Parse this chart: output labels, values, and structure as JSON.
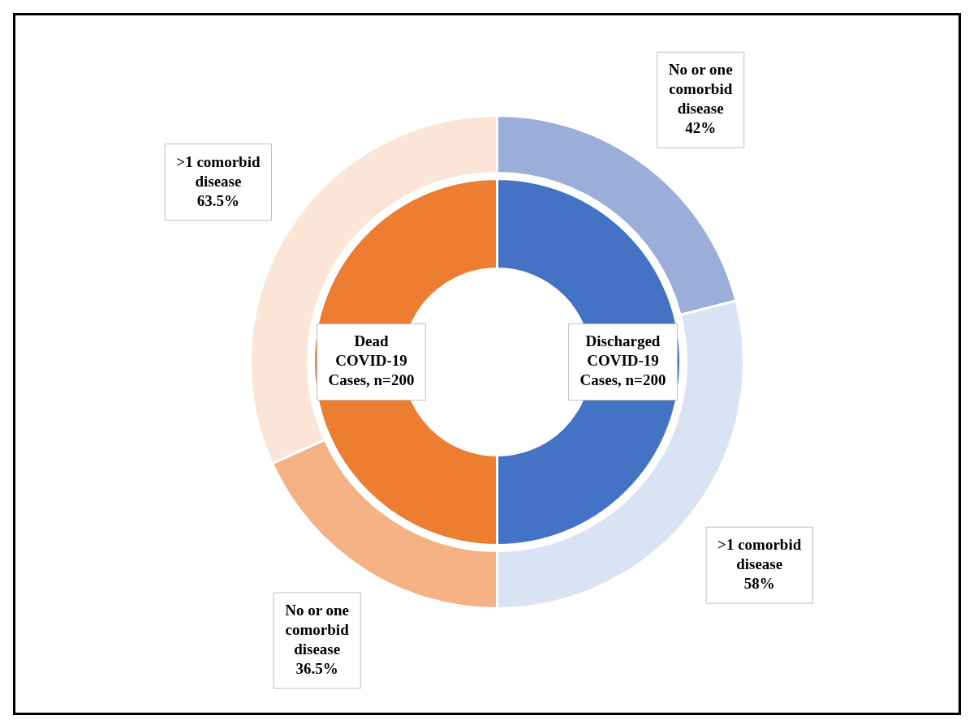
{
  "chart_data": [
    {
      "type": "donut",
      "categories": [
        "Discharged COVID-19 Cases, n=200",
        "Dead COVID-19 Cases, n=200"
      ],
      "values": [
        200,
        200
      ],
      "colors": [
        "#4472c4",
        "#ed7d31"
      ],
      "legend": false
    },
    {
      "type": "donut",
      "categories": [
        "No or one comorbid disease",
        ">1 comorbid disease",
        "No or one comorbid disease",
        ">1 comorbid disease"
      ],
      "values": [
        42,
        58,
        36.5,
        63.5
      ],
      "value_labels": [
        "42%",
        "58%",
        "36.5%",
        "63.5%"
      ],
      "colors": [
        "#9badd9",
        "#dae3f3",
        "#f4b183",
        "#fbe5d6"
      ],
      "legend": false
    }
  ]
}
